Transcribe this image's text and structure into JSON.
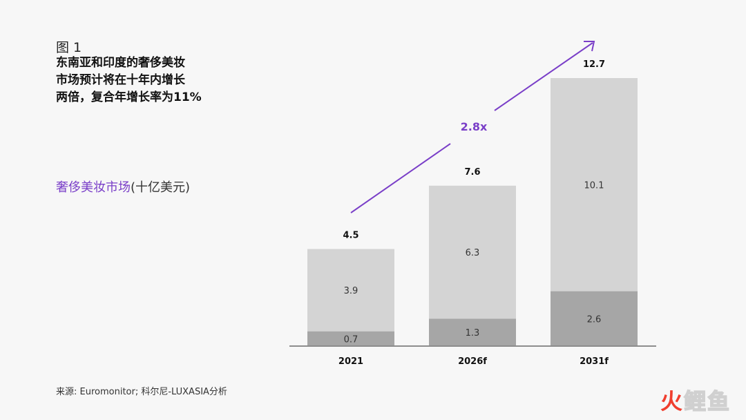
{
  "figure_label": "图 1",
  "title": "东南亚和印度的奢侈美妆\n市场预计将在十年内增长\n两倍，复合年增长率为11%",
  "subtitle": {
    "highlight": "奢侈美妆市场",
    "unit": "(十亿美元)"
  },
  "source": "来源: Euromonitor; 科尔尼-LUXASIA分析",
  "watermark": {
    "part1": "火",
    "part2": "鲤鱼"
  },
  "colors": {
    "accent": "#7a3fc8",
    "bar_light": "#d4d4d4",
    "bar_dark": "#a6a6a6",
    "axis": "#8c8c8c",
    "background": "#f7f7f7"
  },
  "chart_data": {
    "type": "bar",
    "stacked": true,
    "categories": [
      "2021",
      "2026f",
      "2031f"
    ],
    "series": [
      {
        "values": [
          0.7,
          1.3,
          2.6
        ],
        "color": "#a6a6a6",
        "labels": [
          "0.7",
          "1.3",
          "2.6"
        ]
      },
      {
        "values": [
          3.9,
          6.3,
          10.1
        ],
        "color": "#d4d4d4",
        "labels": [
          "3.9",
          "6.3",
          "10.1"
        ]
      }
    ],
    "totals": [
      4.5,
      7.6,
      12.7
    ],
    "total_labels": [
      "4.5",
      "7.6",
      "12.7"
    ],
    "ylim": [
      0,
      12.7
    ],
    "grid": false,
    "legend": "none",
    "annotation": {
      "text": "2.8x",
      "type": "growth-arrow",
      "color": "#7a3fc8"
    },
    "title": "",
    "xlabel": "",
    "ylabel": ""
  }
}
